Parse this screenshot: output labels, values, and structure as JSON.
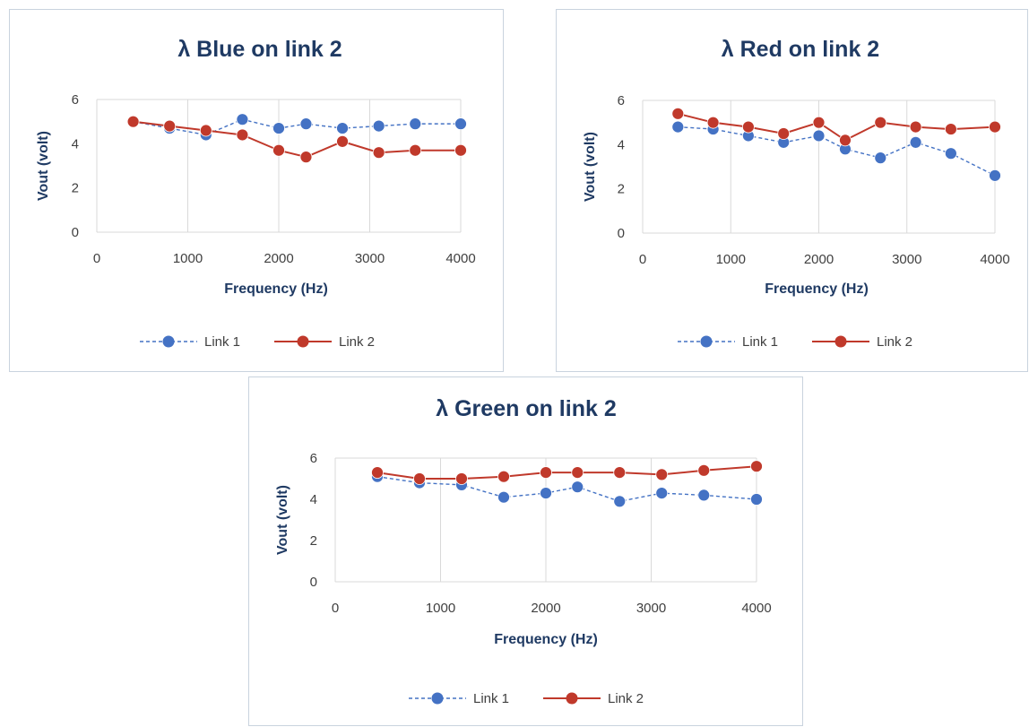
{
  "charts": [
    {
      "type": "line",
      "title": "λ Blue on link 2",
      "xlabel": "Frequency (Hz)",
      "ylabel": "Vout (volt)",
      "xlim": [
        0,
        4000
      ],
      "ylim": [
        0,
        6
      ],
      "xticks": [
        0,
        1000,
        2000,
        3000,
        4000
      ],
      "yticks": [
        0,
        2,
        4,
        6
      ],
      "grid": "vertical",
      "legend": "bottom",
      "x": [
        400,
        800,
        1200,
        1600,
        2000,
        2300,
        2700,
        3100,
        3500,
        4000
      ],
      "series": [
        {
          "name": "Link 1",
          "color": "#4472c4",
          "style": "dashed",
          "values": [
            5.0,
            4.7,
            4.4,
            5.1,
            4.7,
            4.9,
            4.7,
            4.8,
            4.9,
            4.9
          ]
        },
        {
          "name": "Link 2",
          "color": "#c0392b",
          "style": "solid",
          "values": [
            5.0,
            4.8,
            4.6,
            4.4,
            3.7,
            3.4,
            4.1,
            3.6,
            3.7,
            3.7
          ]
        }
      ]
    },
    {
      "type": "line",
      "title": "λ Red on link 2",
      "xlabel": "Frequency (Hz)",
      "ylabel": "Vout (volt)",
      "xlim": [
        0,
        4000
      ],
      "ylim": [
        0,
        6
      ],
      "xticks": [
        0,
        1000,
        2000,
        3000,
        4000
      ],
      "yticks": [
        0,
        2,
        4,
        6
      ],
      "grid": "vertical",
      "legend": "bottom",
      "x": [
        400,
        800,
        1200,
        1600,
        2000,
        2300,
        2700,
        3100,
        3500,
        4000
      ],
      "series": [
        {
          "name": "Link 1",
          "color": "#4472c4",
          "style": "dashed",
          "values": [
            4.8,
            4.7,
            4.4,
            4.1,
            4.4,
            3.8,
            3.4,
            4.1,
            3.6,
            2.6
          ]
        },
        {
          "name": "Link 2",
          "color": "#c0392b",
          "style": "solid",
          "values": [
            5.4,
            5.0,
            4.8,
            4.5,
            5.0,
            4.2,
            5.0,
            4.8,
            4.7,
            4.8
          ]
        }
      ]
    },
    {
      "type": "line",
      "title": "λ Green on link 2",
      "xlabel": "Frequency (Hz)",
      "ylabel": "Vout (volt)",
      "xlim": [
        0,
        4000
      ],
      "ylim": [
        0,
        6
      ],
      "xticks": [
        0,
        1000,
        2000,
        3000,
        4000
      ],
      "yticks": [
        0,
        2,
        4,
        6
      ],
      "grid": "vertical",
      "legend": "bottom",
      "x": [
        400,
        800,
        1200,
        1600,
        2000,
        2300,
        2700,
        3100,
        3500,
        4000
      ],
      "series": [
        {
          "name": "Link 1",
          "color": "#4472c4",
          "style": "dashed",
          "values": [
            5.1,
            4.8,
            4.7,
            4.1,
            4.3,
            4.6,
            3.9,
            4.3,
            4.2,
            4.0
          ]
        },
        {
          "name": "Link 2",
          "color": "#c0392b",
          "style": "solid",
          "values": [
            5.3,
            5.0,
            5.0,
            5.1,
            5.3,
            5.3,
            5.3,
            5.2,
            5.4,
            5.6
          ]
        }
      ]
    }
  ]
}
